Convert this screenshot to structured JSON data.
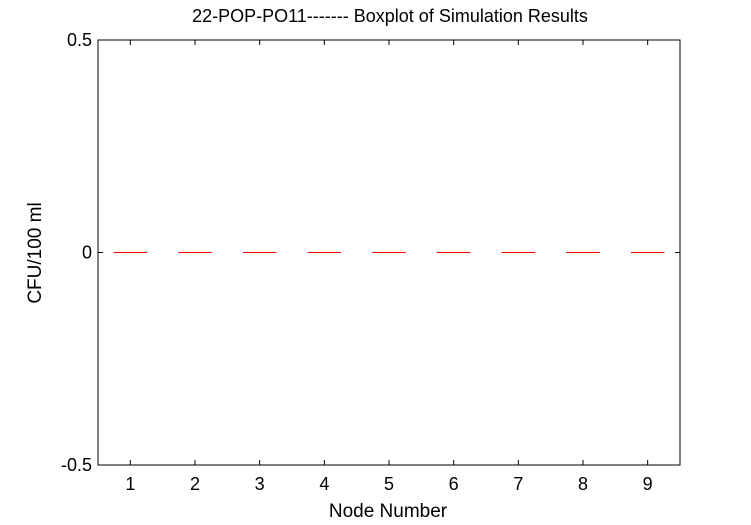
{
  "chart_data": {
    "type": "boxplot",
    "title": "22-POP-PO11------- Boxplot of Simulation Results",
    "xlabel": "Node Number",
    "ylabel": "CFU/100 ml",
    "categories": [
      "1",
      "2",
      "3",
      "4",
      "5",
      "6",
      "7",
      "8",
      "9"
    ],
    "ylim": [
      -0.5,
      0.5
    ],
    "yticks": [
      "-0.5",
      "0",
      "0.5"
    ],
    "medians": [
      0,
      0,
      0,
      0,
      0,
      0,
      0,
      0,
      0
    ],
    "grid": false,
    "median_color": "#ff0000",
    "axis_color": "#000000"
  }
}
